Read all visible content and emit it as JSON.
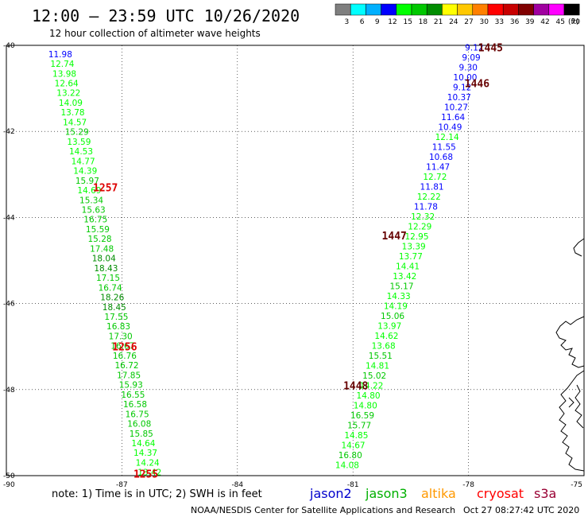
{
  "header": {
    "title": "12:00 – 23:59 UTC 10/26/2020",
    "subtitle": "12 hour collection of altimeter wave heights"
  },
  "colorbar": {
    "unit": "(ft)",
    "labels": [
      "3",
      "6",
      "9",
      "12",
      "15",
      "18",
      "21",
      "24",
      "27",
      "30",
      "33",
      "36",
      "39",
      "42",
      "45",
      "70"
    ],
    "colors": [
      "#7f7f7f",
      "#00ffff",
      "#00b0ff",
      "#0000ff",
      "#00ff00",
      "#00c800",
      "#008c00",
      "#ffff00",
      "#ffc800",
      "#ff8000",
      "#ff0000",
      "#c80000",
      "#800000",
      "#a000a0",
      "#ff00ff",
      "#000000"
    ]
  },
  "footer": {
    "note": "note:  1) Time is in UTC;  2) SWH is in feet",
    "credit": "NOAA/NESDIS Center for Satellite Applications and Research",
    "timestamp": "Oct 27 08:27:42 UTC 2020"
  },
  "legend": [
    {
      "name": "jason2",
      "color": "#0000cc"
    },
    {
      "name": "jason3",
      "color": "#00b000"
    },
    {
      "name": "altika",
      "color": "#ff9900"
    },
    {
      "name": "cryosat",
      "color": "#ff0000"
    },
    {
      "name": "s3a",
      "color": "#990033"
    }
  ],
  "chart_data": {
    "type": "scatter",
    "xlim": [
      -90,
      -75
    ],
    "ylim": [
      -50,
      -40
    ],
    "x_ticks": [
      "-87",
      "-84",
      "-81",
      "-78",
      "-75"
    ],
    "x_corner_label": "-90",
    "y_ticks": [
      "-40",
      "-42",
      "-44",
      "-46",
      "-48",
      "-50"
    ],
    "grid": true,
    "color_scale": [
      {
        "max": 3,
        "color": "#7f7f7f"
      },
      {
        "max": 6,
        "color": "#00ffff"
      },
      {
        "max": 9,
        "color": "#00b0ff"
      },
      {
        "max": 12,
        "color": "#0000ff"
      },
      {
        "max": 15,
        "color": "#00ff00"
      },
      {
        "max": 18,
        "color": "#00c800"
      },
      {
        "max": 21,
        "color": "#008c00"
      }
    ],
    "series": [
      {
        "satellite": "jason3",
        "x_start": -88.6,
        "y_start": -40.2,
        "x_end": -86.28,
        "y_end": -49.92,
        "values": [
          "11.98",
          "12.74",
          "13.98",
          "12.64",
          "13.22",
          "14.09",
          "13.78",
          "14.57",
          "15.29",
          "13.59",
          "14.53",
          "14.77",
          "14.39",
          "15.97",
          "14.69",
          "15.34",
          "15.63",
          "16.75",
          "15.59",
          "15.28",
          "17.48",
          "18.04",
          "18.43",
          "17.15",
          "16.74",
          "18.26",
          "18.45",
          "17.55",
          "16.83",
          "17.30",
          "16.67",
          "16.76",
          "16.72",
          "17.85",
          "15.93",
          "16.55",
          "16.58",
          "16.75",
          "16.08",
          "15.85",
          "14.64",
          "14.37",
          "14.24",
          "13.42"
        ]
      },
      {
        "satellite": "jason2",
        "x_start": -77.85,
        "y_start": -40.05,
        "x_end": -81.15,
        "y_end": -49.75,
        "values": [
          "9.12",
          "9.09",
          "9.30",
          "10.00",
          "9.12",
          "10.37",
          "10.27",
          "11.64",
          "10.49",
          "12.14",
          "11.55",
          "10.68",
          "11.47",
          "12.72",
          "11.81",
          "12.22",
          "11.78",
          "12.32",
          "12.29",
          "12.95",
          "13.39",
          "13.77",
          "14.41",
          "13.42",
          "15.17",
          "14.33",
          "14.19",
          "15.06",
          "13.97",
          "14.62",
          "13.68",
          "15.51",
          "14.81",
          "15.02",
          "14.22",
          "14.80",
          "14.80",
          "16.59",
          "15.77",
          "14.85",
          "14.67",
          "16.80",
          "14.08"
        ]
      }
    ],
    "pass_labels": [
      {
        "text": "1257",
        "x": -87.75,
        "y": -43.3,
        "color": "#dd0000"
      },
      {
        "text": "1256",
        "x": -87.25,
        "y": -47.0,
        "color": "#dd0000"
      },
      {
        "text": "1255",
        "x": -86.7,
        "y": -49.95,
        "color": "#dd0000"
      },
      {
        "text": "1445",
        "x": -77.75,
        "y": -40.05,
        "color": "#660000"
      },
      {
        "text": "1446",
        "x": -78.1,
        "y": -40.88,
        "color": "#660000"
      },
      {
        "text": "1447",
        "x": -80.25,
        "y": -44.42,
        "color": "#660000"
      },
      {
        "text": "1448",
        "x": -81.25,
        "y": -47.9,
        "color": "#660000"
      }
    ]
  }
}
